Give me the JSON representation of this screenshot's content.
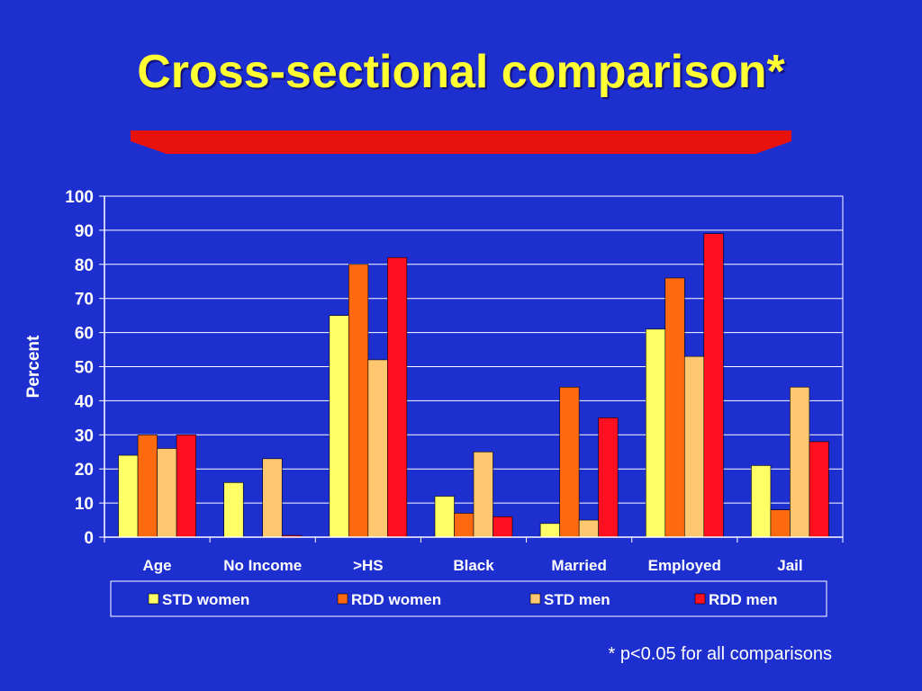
{
  "title": "Cross-sectional comparison*",
  "footnote": "* p<0.05 for all comparisons",
  "colors": {
    "background": "#1e2fd0",
    "title": "#ffff33",
    "title_bar": "#e8120c",
    "std_women": "#ffff66",
    "rdd_women": "#ff6a10",
    "std_men": "#ffc870",
    "rdd_men": "#ff1020"
  },
  "chart_data": {
    "type": "bar",
    "ylabel": "Percent",
    "ylim": [
      0,
      100
    ],
    "yticks": [
      0,
      10,
      20,
      30,
      40,
      50,
      60,
      70,
      80,
      90,
      100
    ],
    "grid": true,
    "legend_position": "bottom",
    "categories": [
      "Age",
      "No Income",
      ">HS",
      "Black",
      "Married",
      "Employed",
      "Jail"
    ],
    "series": [
      {
        "name": "STD women",
        "color": "#ffff66",
        "values": [
          24,
          16,
          65,
          12,
          4,
          61,
          21
        ]
      },
      {
        "name": "RDD women",
        "color": "#ff6a10",
        "values": [
          30,
          0,
          80,
          7,
          44,
          76,
          8
        ]
      },
      {
        "name": "STD men",
        "color": "#ffc870",
        "values": [
          26,
          23,
          52,
          25,
          5,
          53,
          44
        ]
      },
      {
        "name": "RDD men",
        "color": "#ff1020",
        "values": [
          30,
          0.5,
          82,
          6,
          35,
          89,
          28
        ]
      }
    ]
  }
}
